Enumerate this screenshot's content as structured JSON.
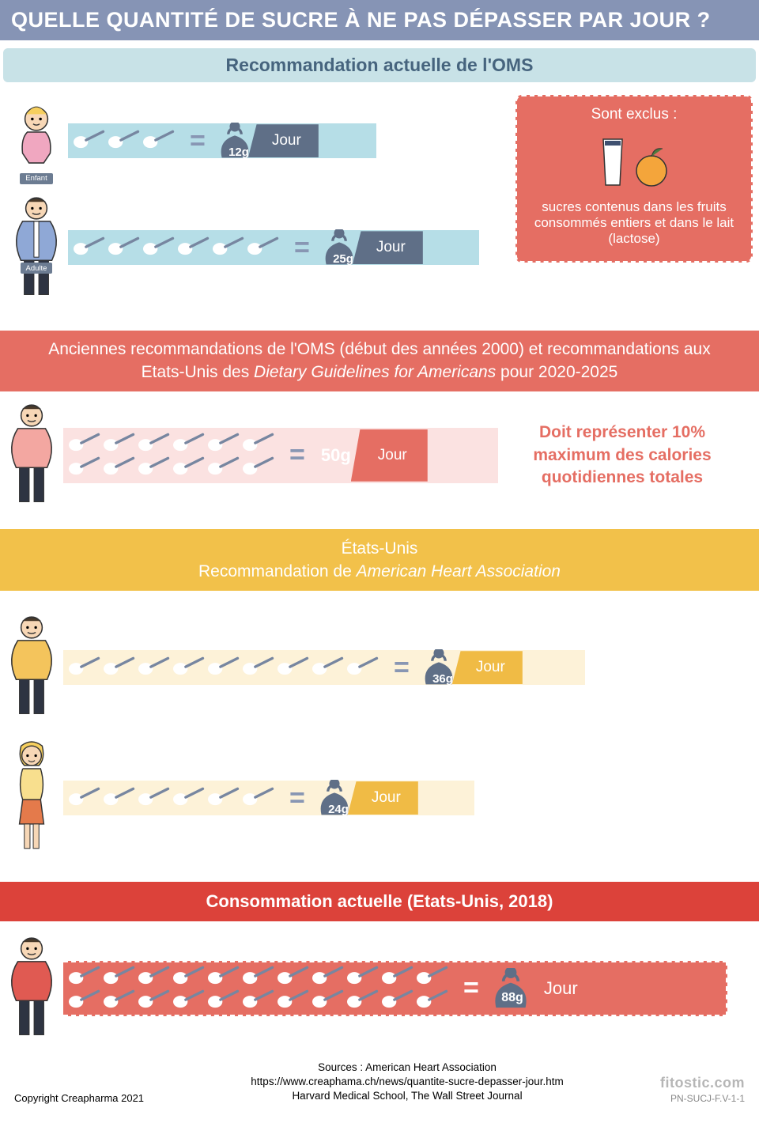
{
  "title": "QUELLE QUANTITÉ DE SUCRE À NE PAS DÉPASSER PAR JOUR ?",
  "colors": {
    "title_bg": "#8694b5",
    "blue_band": "#c8e2e7",
    "blue_strip": "#b6dee7",
    "slate": "#5f6f87",
    "coral": "#e56e63",
    "pink_strip": "#fbe2e1",
    "yellow_band": "#f2c14a",
    "cream_strip": "#fdf2d8",
    "gold_flag": "#f0bb45",
    "red_band": "#dc423a",
    "spoon_handle": "#7786a0",
    "spoon_handle_light": "#9aa7c0"
  },
  "section_who": {
    "heading": "Recommandation actuelle de l'OMS",
    "child": {
      "label": "Enfant",
      "spoons": 3,
      "grams_label": "12g",
      "per": "Jour",
      "strip_color": "#b6dee7",
      "flag_color": "#5f6f87",
      "weight_color": "#5f6f87"
    },
    "adult": {
      "label": "Adulte",
      "spoons": 6,
      "grams_label": "25g",
      "per": "Jour",
      "strip_color": "#b6dee7",
      "flag_color": "#5f6f87",
      "weight_color": "#5f6f87"
    },
    "excluded": {
      "title": "Sont exclus :",
      "text": "sucres contenus dans les fruits consommés entiers et dans le lait (lactose)"
    }
  },
  "section_old": {
    "heading_pre": "Anciennes recommandations de l'OMS (début des années 2000) et recommandations aux Etats-Unis des ",
    "heading_italic": "Dietary Guidelines for Americans",
    "heading_post": " pour 2020-2025",
    "spoons": 12,
    "grams_label": "50g",
    "per": "Jour",
    "note": "Doit représenter 10% maximum des calories quotidiennes totales",
    "strip_color": "#fbe2e1",
    "flag_color": "#e56e63",
    "weight_color": "#ffffff",
    "weight_text_color": "#e7a9a3"
  },
  "section_aha": {
    "heading_pre": "États-Unis",
    "heading_line2_pre": "Recommandation de ",
    "heading_line2_italic": "American Heart Association",
    "man": {
      "spoons": 9,
      "grams_label": "36g",
      "per": "Jour",
      "strip_color": "#fdf2d8",
      "flag_color": "#f0bb45",
      "weight_color": "#5f6f87"
    },
    "woman": {
      "spoons": 6,
      "grams_label": "24g",
      "per": "Jour",
      "strip_color": "#fdf2d8",
      "flag_color": "#f0bb45",
      "weight_color": "#5f6f87"
    }
  },
  "section_consumption": {
    "heading": "Consommation actuelle (Etats-Unis, 2018)",
    "spoons": 22,
    "grams_label": "88g",
    "per": "Jour",
    "strip_color": "#e56e63",
    "weight_color": "#5f6f87"
  },
  "footer": {
    "copyright": "Copyright Creapharma 2021",
    "src1": "Sources : American Heart Association",
    "src2": "https://www.creaphama.ch/news/quantite-sucre-depasser-jour.htm",
    "src3": "Harvard Medical School, The Wall Street Journal",
    "watermark": "fitostic.com",
    "code": "PN-SUCJ-F.V-1-1"
  }
}
